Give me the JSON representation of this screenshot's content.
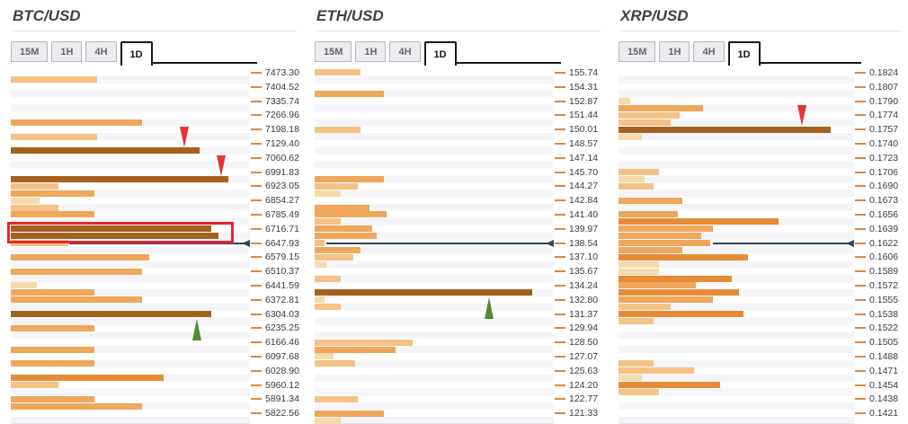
{
  "palette": {
    "strength_1_weakest": "#f7d9ac",
    "strength_2": "#f4c286",
    "strength_3": "#efa75c",
    "strength_4": "#e78c36",
    "strength_5_strongest": "#a5611e",
    "price_line": "#2d4660",
    "arrow_up_green": "#4e8e2d",
    "arrow_down_red": "#e6342f",
    "highlight_box_red": "#e5262c",
    "axis_tick_orange": "#e0873a"
  },
  "chart_data": [
    {
      "type": "bar",
      "orientation": "horizontal",
      "title": "BTC/USD",
      "timeframe_tabs": [
        "15M",
        "1H",
        "4H",
        "1D"
      ],
      "active_tab": "1D",
      "rows_per_label_step": 2,
      "price_labels": [
        "7473.30",
        "7404.52",
        "7335.74",
        "7266.96",
        "7198.18",
        "7129.40",
        "7060.62",
        "6991.83",
        "6923.05",
        "6854.27",
        "6785.49",
        "6716.71",
        "6647.93",
        "6579.15",
        "6510.37",
        "6441.59",
        "6372.81",
        "6304.03",
        "6235.25",
        "6166.46",
        "6097.68",
        "6028.90",
        "5960.12",
        "5891.34",
        "5822.56"
      ],
      "bars": [
        {
          "row": 1,
          "len_pct": 36,
          "strength": 2
        },
        {
          "row": 7,
          "len_pct": 55,
          "strength": 3
        },
        {
          "row": 9,
          "len_pct": 36,
          "strength": 2
        },
        {
          "row": 11,
          "len_pct": 79,
          "strength": 5
        },
        {
          "row": 15,
          "len_pct": 91,
          "strength": 5
        },
        {
          "row": 16,
          "len_pct": 20,
          "strength": 2
        },
        {
          "row": 17,
          "len_pct": 35,
          "strength": 3
        },
        {
          "row": 18,
          "len_pct": 12,
          "strength": 1
        },
        {
          "row": 19,
          "len_pct": 20,
          "strength": 2
        },
        {
          "row": 20,
          "len_pct": 35,
          "strength": 3
        },
        {
          "row": 22,
          "len_pct": 84,
          "strength": 5
        },
        {
          "row": 23,
          "len_pct": 87,
          "strength": 5
        },
        {
          "row": 24,
          "len_pct": 24,
          "strength": 2
        },
        {
          "row": 26,
          "len_pct": 58,
          "strength": 3
        },
        {
          "row": 28,
          "len_pct": 55,
          "strength": 3
        },
        {
          "row": 30,
          "len_pct": 11,
          "strength": 1
        },
        {
          "row": 31,
          "len_pct": 35,
          "strength": 3
        },
        {
          "row": 32,
          "len_pct": 55,
          "strength": 3
        },
        {
          "row": 34,
          "len_pct": 84,
          "strength": 5
        },
        {
          "row": 36,
          "len_pct": 35,
          "strength": 3
        },
        {
          "row": 39,
          "len_pct": 35,
          "strength": 3
        },
        {
          "row": 41,
          "len_pct": 35,
          "strength": 3
        },
        {
          "row": 43,
          "len_pct": 64,
          "strength": 4
        },
        {
          "row": 44,
          "len_pct": 20,
          "strength": 2
        },
        {
          "row": 46,
          "len_pct": 35,
          "strength": 3
        },
        {
          "row": 47,
          "len_pct": 55,
          "strength": 3
        }
      ],
      "current_price_line": {
        "row": 24,
        "start_pct": 24.5,
        "at_label": "6647.93"
      },
      "arrows": [
        {
          "dir": "down",
          "tip_row": 11,
          "x_pct": 72.5
        },
        {
          "dir": "down",
          "tip_row": 15,
          "x_pct": 88
        },
        {
          "dir": "up",
          "tip_row": 35,
          "x_pct": 78
        }
      ],
      "highlight_box": {
        "row_start": 22,
        "row_end": 23,
        "len_pct": 91
      }
    },
    {
      "type": "bar",
      "orientation": "horizontal",
      "title": "ETH/USD",
      "timeframe_tabs": [
        "15M",
        "1H",
        "4H",
        "1D"
      ],
      "active_tab": "1D",
      "rows_per_label_step": 2,
      "price_labels": [
        "155.74",
        "154.31",
        "152.87",
        "151.44",
        "150.01",
        "148.57",
        "147.14",
        "145.70",
        "144.27",
        "142.84",
        "141.40",
        "139.97",
        "138.54",
        "137.10",
        "135.67",
        "134.24",
        "132.80",
        "131.37",
        "129.94",
        "128.50",
        "127.07",
        "125.63",
        "124.20",
        "122.77",
        "121.33"
      ],
      "bars": [
        {
          "row": 0,
          "len_pct": 19,
          "strength": 2
        },
        {
          "row": 3,
          "len_pct": 29,
          "strength": 3
        },
        {
          "row": 8,
          "len_pct": 19,
          "strength": 2
        },
        {
          "row": 15,
          "len_pct": 29,
          "strength": 3
        },
        {
          "row": 16,
          "len_pct": 18,
          "strength": 2
        },
        {
          "row": 17,
          "len_pct": 11,
          "strength": 1
        },
        {
          "row": 19,
          "len_pct": 23,
          "strength": 3
        },
        {
          "row": 20,
          "len_pct": 30,
          "strength": 3
        },
        {
          "row": 21,
          "len_pct": 11,
          "strength": 2
        },
        {
          "row": 22,
          "len_pct": 24,
          "strength": 3
        },
        {
          "row": 23,
          "len_pct": 26,
          "strength": 3
        },
        {
          "row": 24,
          "len_pct": 4,
          "strength": 2
        },
        {
          "row": 25,
          "len_pct": 19,
          "strength": 3
        },
        {
          "row": 26,
          "len_pct": 16,
          "strength": 2
        },
        {
          "row": 27,
          "len_pct": 5,
          "strength": 1
        },
        {
          "row": 29,
          "len_pct": 11,
          "strength": 2
        },
        {
          "row": 31,
          "len_pct": 91,
          "strength": 5
        },
        {
          "row": 32,
          "len_pct": 4,
          "strength": 1
        },
        {
          "row": 33,
          "len_pct": 11,
          "strength": 2
        },
        {
          "row": 38,
          "len_pct": 41,
          "strength": 2
        },
        {
          "row": 39,
          "len_pct": 34,
          "strength": 3
        },
        {
          "row": 40,
          "len_pct": 8,
          "strength": 1
        },
        {
          "row": 41,
          "len_pct": 17,
          "strength": 2
        },
        {
          "row": 46,
          "len_pct": 18,
          "strength": 2
        },
        {
          "row": 48,
          "len_pct": 29,
          "strength": 3
        },
        {
          "row": 49,
          "len_pct": 11,
          "strength": 1
        }
      ],
      "current_price_line": {
        "row": 24,
        "start_pct": 5,
        "at_label": "138.54"
      },
      "arrows": [
        {
          "dir": "up",
          "tip_row": 32,
          "x_pct": 73
        }
      ],
      "highlight_box": null
    },
    {
      "type": "bar",
      "orientation": "horizontal",
      "title": "XRP/USD",
      "timeframe_tabs": [
        "15M",
        "1H",
        "4H",
        "1D"
      ],
      "active_tab": "1D",
      "rows_per_label_step": 2,
      "price_labels": [
        "0.1824",
        "0.1807",
        "0.1790",
        "0.1774",
        "0.1757",
        "0.1740",
        "0.1723",
        "0.1706",
        "0.1690",
        "0.1673",
        "0.1656",
        "0.1639",
        "0.1622",
        "0.1606",
        "0.1589",
        "0.1572",
        "0.1555",
        "0.1538",
        "0.1522",
        "0.1505",
        "0.1488",
        "0.1471",
        "0.1454",
        "0.1438",
        "0.1421"
      ],
      "bars": [
        {
          "row": 4,
          "len_pct": 5,
          "strength": 1
        },
        {
          "row": 5,
          "len_pct": 36,
          "strength": 3
        },
        {
          "row": 6,
          "len_pct": 26,
          "strength": 2
        },
        {
          "row": 7,
          "len_pct": 22,
          "strength": 2
        },
        {
          "row": 8,
          "len_pct": 90,
          "strength": 5
        },
        {
          "row": 9,
          "len_pct": 10,
          "strength": 1
        },
        {
          "row": 14,
          "len_pct": 17,
          "strength": 2
        },
        {
          "row": 15,
          "len_pct": 11,
          "strength": 1
        },
        {
          "row": 16,
          "len_pct": 15,
          "strength": 2
        },
        {
          "row": 18,
          "len_pct": 27,
          "strength": 3
        },
        {
          "row": 20,
          "len_pct": 25,
          "strength": 3
        },
        {
          "row": 21,
          "len_pct": 68,
          "strength": 4
        },
        {
          "row": 22,
          "len_pct": 40,
          "strength": 3
        },
        {
          "row": 23,
          "len_pct": 35,
          "strength": 3
        },
        {
          "row": 24,
          "len_pct": 39,
          "strength": 3
        },
        {
          "row": 25,
          "len_pct": 27,
          "strength": 3
        },
        {
          "row": 26,
          "len_pct": 55,
          "strength": 4
        },
        {
          "row": 27,
          "len_pct": 17,
          "strength": 1
        },
        {
          "row": 28,
          "len_pct": 17,
          "strength": 1
        },
        {
          "row": 29,
          "len_pct": 48,
          "strength": 4
        },
        {
          "row": 30,
          "len_pct": 33,
          "strength": 3
        },
        {
          "row": 31,
          "len_pct": 51,
          "strength": 4
        },
        {
          "row": 32,
          "len_pct": 40,
          "strength": 3
        },
        {
          "row": 33,
          "len_pct": 22,
          "strength": 2
        },
        {
          "row": 34,
          "len_pct": 53,
          "strength": 4
        },
        {
          "row": 35,
          "len_pct": 15,
          "strength": 2
        },
        {
          "row": 41,
          "len_pct": 15,
          "strength": 2
        },
        {
          "row": 42,
          "len_pct": 32,
          "strength": 2
        },
        {
          "row": 43,
          "len_pct": 10,
          "strength": 1
        },
        {
          "row": 44,
          "len_pct": 43,
          "strength": 4
        },
        {
          "row": 45,
          "len_pct": 17,
          "strength": 2
        }
      ],
      "current_price_line": {
        "row": 24,
        "start_pct": 40,
        "at_label": "0.1622"
      },
      "arrows": [
        {
          "dir": "down",
          "tip_row": 8,
          "x_pct": 78
        }
      ],
      "highlight_box": null
    }
  ]
}
